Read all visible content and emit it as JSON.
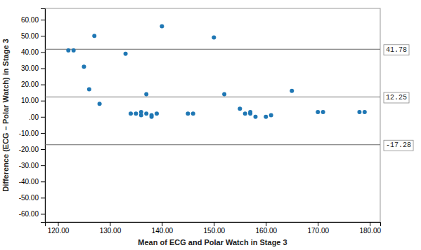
{
  "chart_data": {
    "type": "scatter",
    "x": [
      122,
      123,
      125,
      126,
      127,
      128,
      133,
      134,
      135,
      136,
      136,
      137,
      137,
      138,
      138,
      139,
      140,
      145,
      146,
      150,
      152,
      155,
      156,
      157,
      157,
      158,
      160,
      161,
      165,
      170,
      171,
      178,
      179
    ],
    "values": [
      41,
      41,
      31,
      17,
      50,
      8,
      39,
      2,
      2,
      3,
      1,
      2,
      14,
      0,
      1,
      2,
      56,
      2,
      2,
      49,
      14,
      5,
      2,
      3,
      2,
      0,
      0,
      1,
      16,
      3,
      3,
      3,
      3
    ],
    "reference_lines": [
      {
        "value": 41.78,
        "label": "41.78"
      },
      {
        "value": 12.25,
        "label": "12.25"
      },
      {
        "value": -17.28,
        "label": "-17.28"
      }
    ],
    "xlabel": "Mean of ECG and Polar Watch in Stage 3",
    "ylabel": "Difference (ECG – Polar Watch) in Stage 3",
    "xlim": [
      117.5,
      182
    ],
    "ylim": [
      -65,
      67
    ],
    "xticks": [
      {
        "value": 120,
        "label": "120.00"
      },
      {
        "value": 130,
        "label": "130.00"
      },
      {
        "value": 140,
        "label": "140.00"
      },
      {
        "value": 150,
        "label": "150.00"
      },
      {
        "value": 160,
        "label": "160.00"
      },
      {
        "value": 170,
        "label": "170.00"
      },
      {
        "value": 180,
        "label": "180.00"
      }
    ],
    "yticks": [
      {
        "value": -60,
        "label": "-60.00"
      },
      {
        "value": -50,
        "label": "-50.00"
      },
      {
        "value": -40,
        "label": "-40.00"
      },
      {
        "value": -30,
        "label": "-30.00"
      },
      {
        "value": -20,
        "label": "-20.00"
      },
      {
        "value": -10,
        "label": "-10.00"
      },
      {
        "value": 0,
        "label": ".00"
      },
      {
        "value": 10,
        "label": "10.00"
      },
      {
        "value": 20,
        "label": "20.00"
      },
      {
        "value": 30,
        "label": "30.00"
      },
      {
        "value": 40,
        "label": "40.00"
      },
      {
        "value": 50,
        "label": "50.00"
      },
      {
        "value": 60,
        "label": "60.00"
      }
    ],
    "grid": false
  }
}
